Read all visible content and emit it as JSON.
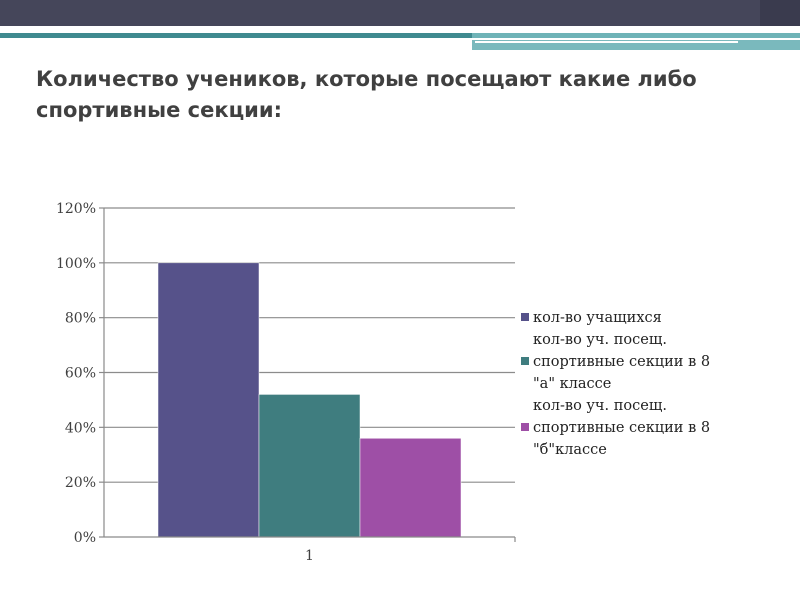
{
  "slide": {
    "title": "Количество учеников, которые посещают какие либо спортивные секции:"
  },
  "chart_data": {
    "type": "bar",
    "categories": [
      "1"
    ],
    "ylim": [
      0,
      120
    ],
    "yticks": [
      "0%",
      "20%",
      "40%",
      "60%",
      "80%",
      "100%",
      "120%"
    ],
    "grid": true,
    "legend_position": "right",
    "series": [
      {
        "legend_lines": [
          "кол-во учащихся"
        ],
        "color": "#56528a",
        "values": [
          100
        ]
      },
      {
        "legend_lines": [
          "кол-во уч. посещ.",
          "спортивные секции в 8",
          "\"а\" классе"
        ],
        "color": "#3f7d7f",
        "values": [
          52
        ]
      },
      {
        "legend_lines": [
          "кол-во уч. посещ.",
          "спортивные секции в 8",
          "\"б\"классе"
        ],
        "color": "#9e4fa6",
        "values": [
          36
        ]
      }
    ]
  }
}
